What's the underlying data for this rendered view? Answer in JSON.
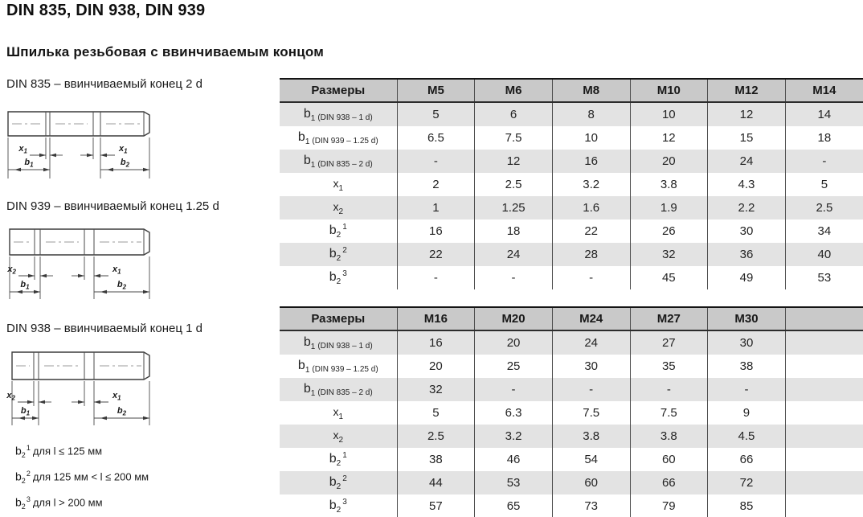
{
  "page": {
    "title": "DIN 835, DIN 938, DIN 939",
    "subtitle": "Шпилька резьбовая с ввинчиваемым концом"
  },
  "colors": {
    "header_bg": "#c9c9c9",
    "stripe_bg": "#e3e3e3",
    "table_border": "#141414",
    "grid_line": "#4f4f4f",
    "text": "#242424"
  },
  "drawings": [
    {
      "caption": "DIN 835 – ввинчиваемый конец 2 d",
      "dim_labels": {
        "x_left": {
          "base": "x",
          "sub": "1"
        },
        "x_right": {
          "base": "x",
          "sub": "1"
        },
        "b_left": {
          "base": "b",
          "sub": "1"
        },
        "b_right": {
          "base": "b",
          "sub": "2"
        }
      }
    },
    {
      "caption": "DIN 939 – ввинчиваемый конец 1.25 d",
      "dim_labels": {
        "x_left": {
          "base": "x",
          "sub": "2"
        },
        "x_right": {
          "base": "x",
          "sub": "1"
        },
        "b_left": {
          "base": "b",
          "sub": "1"
        },
        "b_right": {
          "base": "b",
          "sub": "2"
        }
      }
    },
    {
      "caption": "DIN 938 – ввинчиваемый конец 1 d",
      "dim_labels": {
        "x_left": {
          "base": "x",
          "sub": "2"
        },
        "x_right": {
          "base": "x",
          "sub": "1"
        },
        "b_left": {
          "base": "b",
          "sub": "1"
        },
        "b_right": {
          "base": "b",
          "sub": "2"
        }
      }
    }
  ],
  "footnotes": [
    {
      "base": "b",
      "sub": "2",
      "sup": "1",
      "text": "для l ≤ 125 мм"
    },
    {
      "base": "b",
      "sub": "2",
      "sup": "2",
      "text": "для 125 мм < l ≤ 200 мм"
    },
    {
      "base": "b",
      "sub": "2",
      "sup": "3",
      "text": "для l > 200 мм"
    }
  ],
  "tables": [
    {
      "header": [
        "Размеры",
        "M5",
        "M6",
        "M8",
        "M10",
        "M12",
        "M14"
      ],
      "rows": [
        {
          "label": {
            "base": "b",
            "sub": "1",
            "note": "(DIN 938 – 1 d)"
          },
          "values": [
            "5",
            "6",
            "8",
            "10",
            "12",
            "14"
          ]
        },
        {
          "label": {
            "base": "b",
            "sub": "1",
            "note": "(DIN 939 – 1.25 d)"
          },
          "values": [
            "6.5",
            "7.5",
            "10",
            "12",
            "15",
            "18"
          ]
        },
        {
          "label": {
            "base": "b",
            "sub": "1",
            "note": "(DIN 835 – 2 d)"
          },
          "values": [
            "-",
            "12",
            "16",
            "20",
            "24",
            "-"
          ]
        },
        {
          "label": {
            "base": "x",
            "sub": "1"
          },
          "values": [
            "2",
            "2.5",
            "3.2",
            "3.8",
            "4.3",
            "5"
          ]
        },
        {
          "label": {
            "base": "x",
            "sub": "2"
          },
          "values": [
            "1",
            "1.25",
            "1.6",
            "1.9",
            "2.2",
            "2.5"
          ]
        },
        {
          "label": {
            "base": "b",
            "sub": "2",
            "sup": "1"
          },
          "values": [
            "16",
            "18",
            "22",
            "26",
            "30",
            "34"
          ]
        },
        {
          "label": {
            "base": "b",
            "sub": "2",
            "sup": "2"
          },
          "values": [
            "22",
            "24",
            "28",
            "32",
            "36",
            "40"
          ]
        },
        {
          "label": {
            "base": "b",
            "sub": "2",
            "sup": "3"
          },
          "values": [
            "-",
            "-",
            "-",
            "45",
            "49",
            "53"
          ]
        }
      ]
    },
    {
      "header": [
        "Размеры",
        "M16",
        "M20",
        "M24",
        "M27",
        "M30",
        ""
      ],
      "rows": [
        {
          "label": {
            "base": "b",
            "sub": "1",
            "note": "(DIN 938 – 1 d)"
          },
          "values": [
            "16",
            "20",
            "24",
            "27",
            "30",
            ""
          ]
        },
        {
          "label": {
            "base": "b",
            "sub": "1",
            "note": "(DIN 939 – 1.25 d)"
          },
          "values": [
            "20",
            "25",
            "30",
            "35",
            "38",
            ""
          ]
        },
        {
          "label": {
            "base": "b",
            "sub": "1",
            "note": "(DIN 835 – 2 d)"
          },
          "values": [
            "32",
            "-",
            "-",
            "-",
            "-",
            ""
          ]
        },
        {
          "label": {
            "base": "x",
            "sub": "1"
          },
          "values": [
            "5",
            "6.3",
            "7.5",
            "7.5",
            "9",
            ""
          ]
        },
        {
          "label": {
            "base": "x",
            "sub": "2"
          },
          "values": [
            "2.5",
            "3.2",
            "3.8",
            "3.8",
            "4.5",
            ""
          ]
        },
        {
          "label": {
            "base": "b",
            "sub": "2",
            "sup": "1"
          },
          "values": [
            "38",
            "46",
            "54",
            "60",
            "66",
            ""
          ]
        },
        {
          "label": {
            "base": "b",
            "sub": "2",
            "sup": "2"
          },
          "values": [
            "44",
            "53",
            "60",
            "66",
            "72",
            ""
          ]
        },
        {
          "label": {
            "base": "b",
            "sub": "2",
            "sup": "3"
          },
          "values": [
            "57",
            "65",
            "73",
            "79",
            "85",
            ""
          ]
        }
      ]
    }
  ]
}
